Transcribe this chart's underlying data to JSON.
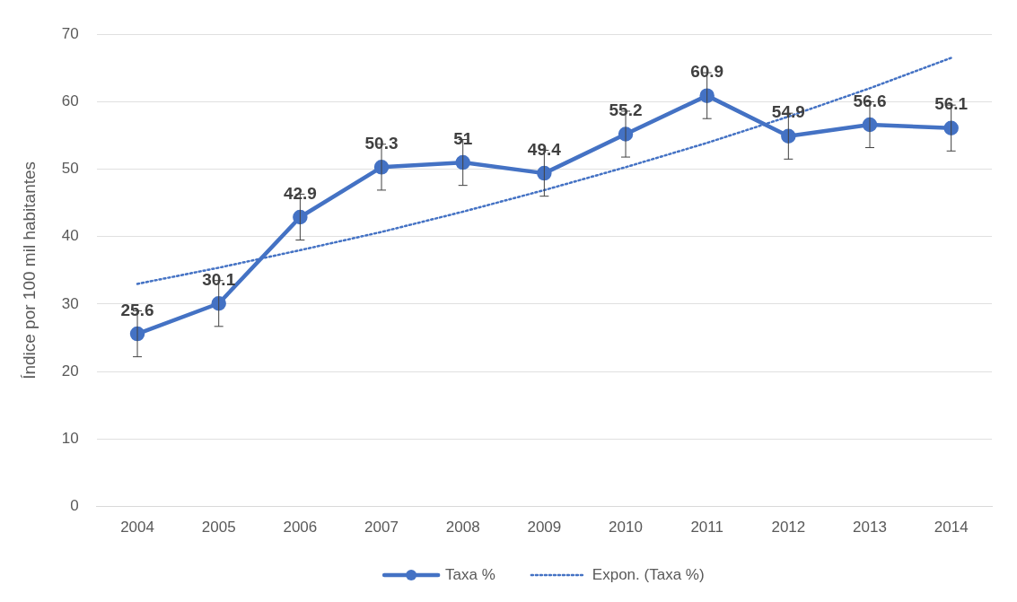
{
  "chart_data": {
    "type": "line",
    "ylabel": "Índice por 100 mil habitantes",
    "categories": [
      "2004",
      "2005",
      "2006",
      "2007",
      "2008",
      "2009",
      "2010",
      "2011",
      "2012",
      "2013",
      "2014"
    ],
    "series": [
      {
        "name": "Taxa %",
        "color": "#4472c4",
        "values": [
          25.6,
          30.1,
          42.9,
          50.3,
          51,
          49.4,
          55.2,
          60.9,
          54.9,
          56.6,
          56.1
        ],
        "errors": [
          3.4,
          3.4,
          3.4,
          3.4,
          3.4,
          3.4,
          3.4,
          3.4,
          3.4,
          3.4,
          3.4
        ],
        "marker": "circle",
        "line_style": "solid",
        "data_labels": true
      },
      {
        "name": "Expon. (Taxa %)",
        "color": "#4472c4",
        "values": [
          33.0,
          35.4,
          38.0,
          40.7,
          43.7,
          46.9,
          50.3,
          53.9,
          57.8,
          62.0,
          66.5
        ],
        "marker": "none",
        "line_style": "dotted"
      }
    ],
    "ylim": [
      0,
      70
    ],
    "yticks": [
      0,
      10,
      20,
      30,
      40,
      50,
      60,
      70
    ],
    "grid": "y",
    "legend": "bottom"
  }
}
